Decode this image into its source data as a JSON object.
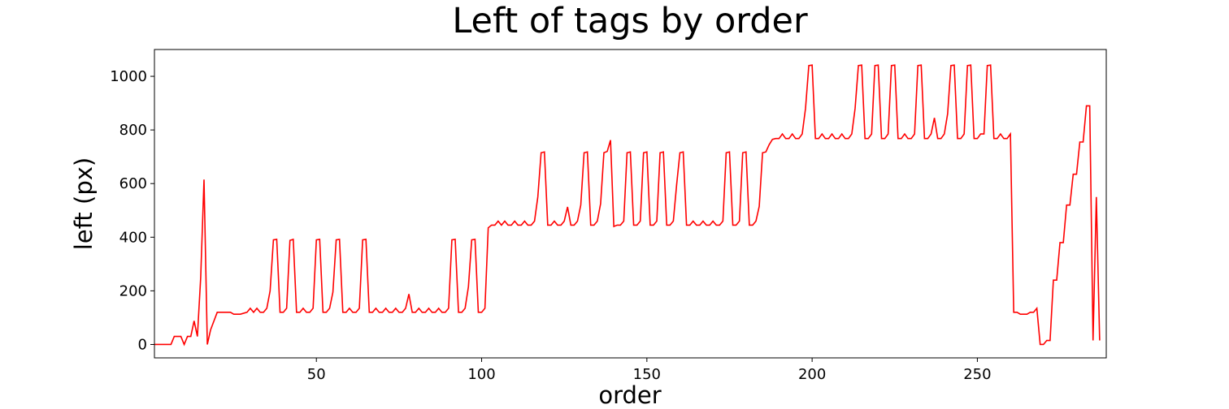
{
  "chart_data": {
    "type": "line",
    "title": "Left of tags by order",
    "xlabel": "order",
    "ylabel": "left (px)",
    "xlim": [
      1,
      289
    ],
    "ylim": [
      -50,
      1100
    ],
    "xticks": [
      50,
      100,
      150,
      200,
      250
    ],
    "yticks": [
      0,
      200,
      400,
      600,
      800,
      1000
    ],
    "grid": false,
    "legend": "none",
    "series": [
      {
        "color": "#ff0000",
        "points": [
          [
            1,
            0
          ],
          [
            6,
            0
          ],
          [
            7,
            30
          ],
          [
            9,
            30
          ],
          [
            10,
            0
          ],
          [
            11,
            30
          ],
          [
            12,
            30
          ],
          [
            13,
            88
          ],
          [
            14,
            30
          ],
          [
            15,
            250
          ],
          [
            16,
            615
          ],
          [
            17,
            0
          ],
          [
            18,
            55
          ],
          [
            20,
            120
          ],
          [
            24,
            120
          ],
          [
            25,
            113
          ],
          [
            27,
            113
          ],
          [
            29,
            120
          ],
          [
            30,
            135
          ],
          [
            31,
            120
          ],
          [
            32,
            135
          ],
          [
            33,
            120
          ],
          [
            34,
            120
          ],
          [
            35,
            135
          ],
          [
            36,
            200
          ],
          [
            37,
            390
          ],
          [
            38,
            392
          ],
          [
            39,
            120
          ],
          [
            40,
            120
          ],
          [
            41,
            135
          ],
          [
            42,
            388
          ],
          [
            43,
            392
          ],
          [
            44,
            120
          ],
          [
            45,
            120
          ],
          [
            46,
            135
          ],
          [
            47,
            120
          ],
          [
            48,
            120
          ],
          [
            49,
            135
          ],
          [
            50,
            390
          ],
          [
            51,
            392
          ],
          [
            52,
            120
          ],
          [
            53,
            120
          ],
          [
            54,
            135
          ],
          [
            55,
            195
          ],
          [
            56,
            390
          ],
          [
            57,
            392
          ],
          [
            58,
            120
          ],
          [
            59,
            120
          ],
          [
            60,
            135
          ],
          [
            61,
            120
          ],
          [
            62,
            120
          ],
          [
            63,
            135
          ],
          [
            64,
            390
          ],
          [
            65,
            392
          ],
          [
            66,
            120
          ],
          [
            67,
            120
          ],
          [
            68,
            135
          ],
          [
            69,
            120
          ],
          [
            70,
            120
          ],
          [
            71,
            135
          ],
          [
            72,
            120
          ],
          [
            73,
            120
          ],
          [
            74,
            135
          ],
          [
            75,
            120
          ],
          [
            76,
            120
          ],
          [
            77,
            135
          ],
          [
            78,
            188
          ],
          [
            79,
            120
          ],
          [
            80,
            120
          ],
          [
            81,
            135
          ],
          [
            82,
            120
          ],
          [
            83,
            120
          ],
          [
            84,
            135
          ],
          [
            85,
            120
          ],
          [
            86,
            120
          ],
          [
            87,
            135
          ],
          [
            88,
            120
          ],
          [
            89,
            120
          ],
          [
            90,
            135
          ],
          [
            91,
            390
          ],
          [
            92,
            392
          ],
          [
            93,
            120
          ],
          [
            94,
            120
          ],
          [
            95,
            135
          ],
          [
            96,
            215
          ],
          [
            97,
            390
          ],
          [
            98,
            392
          ],
          [
            99,
            120
          ],
          [
            100,
            120
          ],
          [
            101,
            135
          ],
          [
            102,
            435
          ],
          [
            103,
            445
          ],
          [
            104,
            445
          ],
          [
            105,
            460
          ],
          [
            106,
            445
          ],
          [
            107,
            460
          ],
          [
            108,
            445
          ],
          [
            109,
            445
          ],
          [
            110,
            460
          ],
          [
            111,
            445
          ],
          [
            112,
            445
          ],
          [
            113,
            460
          ],
          [
            114,
            445
          ],
          [
            115,
            445
          ],
          [
            116,
            460
          ],
          [
            117,
            550
          ],
          [
            118,
            715
          ],
          [
            119,
            718
          ],
          [
            120,
            445
          ],
          [
            121,
            445
          ],
          [
            122,
            460
          ],
          [
            123,
            445
          ],
          [
            124,
            445
          ],
          [
            125,
            460
          ],
          [
            126,
            513
          ],
          [
            127,
            445
          ],
          [
            128,
            445
          ],
          [
            129,
            460
          ],
          [
            130,
            520
          ],
          [
            131,
            715
          ],
          [
            132,
            718
          ],
          [
            133,
            445
          ],
          [
            134,
            445
          ],
          [
            135,
            460
          ],
          [
            136,
            525
          ],
          [
            137,
            715
          ],
          [
            138,
            720
          ],
          [
            139,
            762
          ],
          [
            140,
            440
          ],
          [
            141,
            445
          ],
          [
            142,
            445
          ],
          [
            143,
            460
          ],
          [
            144,
            715
          ],
          [
            145,
            718
          ],
          [
            146,
            445
          ],
          [
            147,
            445
          ],
          [
            148,
            460
          ],
          [
            149,
            715
          ],
          [
            150,
            718
          ],
          [
            151,
            445
          ],
          [
            152,
            445
          ],
          [
            153,
            460
          ],
          [
            154,
            715
          ],
          [
            155,
            718
          ],
          [
            156,
            445
          ],
          [
            157,
            445
          ],
          [
            158,
            460
          ],
          [
            159,
            595
          ],
          [
            160,
            715
          ],
          [
            161,
            718
          ],
          [
            162,
            445
          ],
          [
            163,
            445
          ],
          [
            164,
            460
          ],
          [
            165,
            445
          ],
          [
            166,
            445
          ],
          [
            167,
            460
          ],
          [
            168,
            445
          ],
          [
            169,
            445
          ],
          [
            170,
            460
          ],
          [
            171,
            445
          ],
          [
            172,
            445
          ],
          [
            173,
            460
          ],
          [
            174,
            715
          ],
          [
            175,
            718
          ],
          [
            176,
            445
          ],
          [
            177,
            445
          ],
          [
            178,
            460
          ],
          [
            179,
            715
          ],
          [
            180,
            718
          ],
          [
            181,
            445
          ],
          [
            182,
            445
          ],
          [
            183,
            460
          ],
          [
            184,
            515
          ],
          [
            185,
            715
          ],
          [
            186,
            718
          ],
          [
            187,
            745
          ],
          [
            188,
            765
          ],
          [
            189,
            768
          ],
          [
            190,
            768
          ],
          [
            191,
            785
          ],
          [
            192,
            768
          ],
          [
            193,
            768
          ],
          [
            194,
            785
          ],
          [
            195,
            768
          ],
          [
            196,
            768
          ],
          [
            197,
            785
          ],
          [
            198,
            880
          ],
          [
            199,
            1040
          ],
          [
            200,
            1042
          ],
          [
            201,
            768
          ],
          [
            202,
            768
          ],
          [
            203,
            785
          ],
          [
            204,
            768
          ],
          [
            205,
            768
          ],
          [
            206,
            785
          ],
          [
            207,
            768
          ],
          [
            208,
            768
          ],
          [
            209,
            785
          ],
          [
            210,
            768
          ],
          [
            211,
            768
          ],
          [
            212,
            785
          ],
          [
            213,
            880
          ],
          [
            214,
            1040
          ],
          [
            215,
            1042
          ],
          [
            216,
            768
          ],
          [
            217,
            768
          ],
          [
            218,
            785
          ],
          [
            219,
            1040
          ],
          [
            220,
            1042
          ],
          [
            221,
            768
          ],
          [
            222,
            768
          ],
          [
            223,
            785
          ],
          [
            224,
            1040
          ],
          [
            225,
            1042
          ],
          [
            226,
            768
          ],
          [
            227,
            768
          ],
          [
            228,
            785
          ],
          [
            229,
            768
          ],
          [
            230,
            768
          ],
          [
            231,
            785
          ],
          [
            232,
            1040
          ],
          [
            233,
            1042
          ],
          [
            234,
            768
          ],
          [
            235,
            768
          ],
          [
            236,
            785
          ],
          [
            237,
            845
          ],
          [
            238,
            768
          ],
          [
            239,
            768
          ],
          [
            240,
            785
          ],
          [
            241,
            860
          ],
          [
            242,
            1040
          ],
          [
            243,
            1042
          ],
          [
            244,
            768
          ],
          [
            245,
            768
          ],
          [
            246,
            785
          ],
          [
            247,
            1040
          ],
          [
            248,
            1042
          ],
          [
            249,
            768
          ],
          [
            250,
            768
          ],
          [
            251,
            785
          ],
          [
            252,
            785
          ],
          [
            253,
            1040
          ],
          [
            254,
            1042
          ],
          [
            255,
            768
          ],
          [
            256,
            768
          ],
          [
            257,
            785
          ],
          [
            258,
            768
          ],
          [
            259,
            768
          ],
          [
            260,
            785
          ],
          [
            261,
            120
          ],
          [
            262,
            120
          ],
          [
            263,
            113
          ],
          [
            265,
            113
          ],
          [
            266,
            120
          ],
          [
            267,
            120
          ],
          [
            268,
            135
          ],
          [
            269,
            0
          ],
          [
            270,
            0
          ],
          [
            271,
            15
          ],
          [
            272,
            15
          ],
          [
            273,
            240
          ],
          [
            274,
            240
          ],
          [
            275,
            380
          ],
          [
            276,
            380
          ],
          [
            277,
            520
          ],
          [
            278,
            520
          ],
          [
            279,
            635
          ],
          [
            280,
            635
          ],
          [
            281,
            755
          ],
          [
            282,
            755
          ],
          [
            283,
            890
          ],
          [
            284,
            890
          ],
          [
            285,
            15
          ],
          [
            286,
            550
          ],
          [
            287,
            15
          ]
        ]
      }
    ]
  }
}
